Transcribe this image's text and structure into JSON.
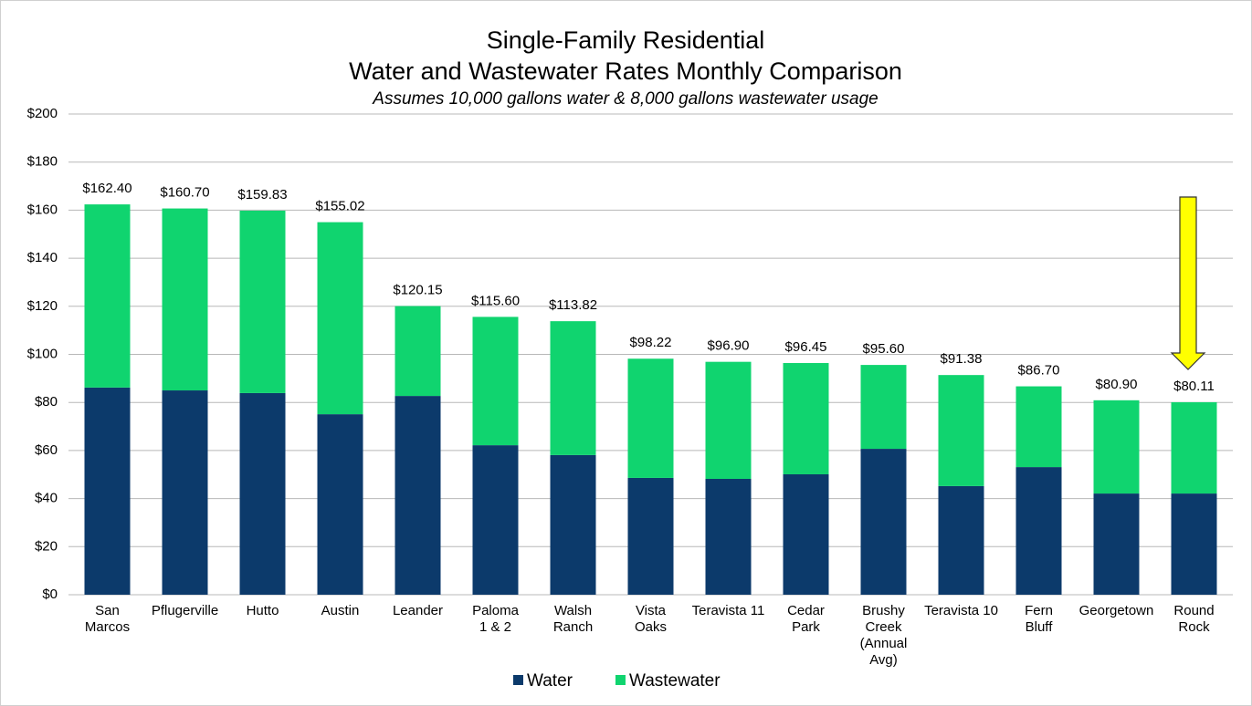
{
  "chart_data": {
    "type": "stacked-bar",
    "title": [
      "Single-Family Residential",
      "Water and Wastewater Rates Monthly Comparison"
    ],
    "subtitle": "Assumes 10,000 gallons water & 8,000 gallons wastewater usage",
    "categories": [
      [
        "San",
        "Marcos"
      ],
      [
        "Pflugerville"
      ],
      [
        "Hutto"
      ],
      [
        "Austin"
      ],
      [
        "Leander"
      ],
      [
        "Paloma",
        "1 & 2"
      ],
      [
        "Walsh",
        "Ranch"
      ],
      [
        "Vista",
        "Oaks"
      ],
      [
        "Teravista 11"
      ],
      [
        "Cedar",
        "Park"
      ],
      [
        "Brushy",
        "Creek",
        "(Annual",
        "Avg)"
      ],
      [
        "Teravista 10"
      ],
      [
        "Fern",
        "Bluff"
      ],
      [
        "Georgetown"
      ],
      [
        "Round",
        "Rock"
      ]
    ],
    "series": [
      {
        "name": "Water",
        "color": "#0c3a6b",
        "values": [
          86.2,
          85.0,
          83.9,
          75.1,
          82.7,
          62.2,
          58.1,
          48.6,
          48.2,
          50.1,
          60.7,
          45.2,
          53.1,
          42.1,
          42.1
        ]
      },
      {
        "name": "Wastewater",
        "color": "#10d46f",
        "values": [
          76.2,
          75.7,
          75.9,
          79.9,
          37.4,
          53.4,
          55.7,
          49.6,
          48.7,
          46.3,
          34.9,
          46.2,
          33.6,
          38.8,
          38.0
        ]
      }
    ],
    "totals": [
      162.4,
      160.7,
      159.83,
      155.02,
      120.15,
      115.6,
      113.82,
      98.22,
      96.9,
      96.45,
      95.6,
      91.38,
      86.7,
      80.9,
      80.11
    ],
    "total_labels": [
      "$162.40",
      "$160.70",
      "$159.83",
      "$155.02",
      "$120.15",
      "$115.60",
      "$113.82",
      "$98.22",
      "$96.90",
      "$96.45",
      "$95.60",
      "$91.38",
      "$86.70",
      "$80.90",
      "$80.11"
    ],
    "ylim": [
      0,
      200
    ],
    "yticks": [
      {
        "value": 0,
        "label": "$0"
      },
      {
        "value": 20,
        "label": "$20"
      },
      {
        "value": 40,
        "label": "$40"
      },
      {
        "value": 60,
        "label": "$60"
      },
      {
        "value": 80,
        "label": "$80"
      },
      {
        "value": 100,
        "label": "$100"
      },
      {
        "value": 120,
        "label": "$120"
      },
      {
        "value": 140,
        "label": "$140"
      },
      {
        "value": 160,
        "label": "$160"
      },
      {
        "value": 180,
        "label": "$180"
      },
      {
        "value": 200,
        "label": "$200"
      }
    ],
    "grid": true,
    "legend": "bottom"
  }
}
